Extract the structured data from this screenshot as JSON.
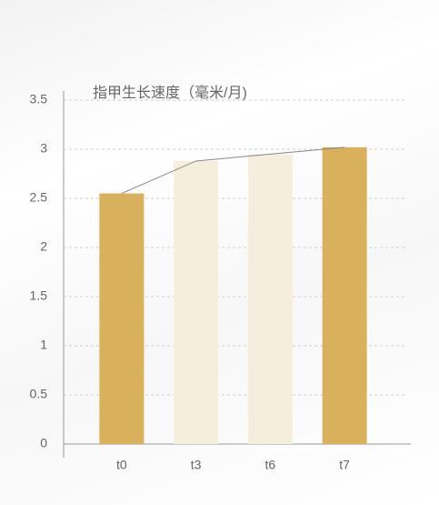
{
  "chart_data": {
    "type": "bar",
    "title": "指甲生长速度（毫米/月)",
    "categories": [
      "t0",
      "t3",
      "t6",
      "t7"
    ],
    "values": [
      2.55,
      2.88,
      2.95,
      3.02
    ],
    "colors": [
      "#d9b15c",
      "#f6eedd",
      "#f6eedd",
      "#d9b15c"
    ],
    "line_color": "#888888",
    "ylim": [
      0,
      3.5
    ],
    "yticks": [
      0,
      0.5,
      1,
      1.5,
      2,
      2.5,
      3,
      3.5
    ],
    "grid": true
  }
}
